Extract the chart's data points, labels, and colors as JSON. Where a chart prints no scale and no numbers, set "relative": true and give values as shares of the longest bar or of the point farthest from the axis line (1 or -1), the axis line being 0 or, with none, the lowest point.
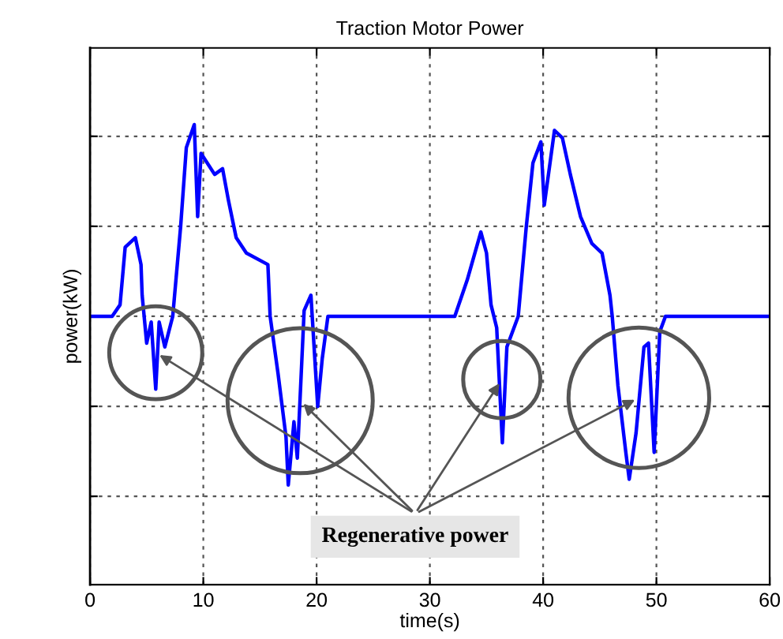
{
  "chart_data": {
    "type": "line",
    "title": "Traction Motor Power",
    "xlabel": "time(s)",
    "ylabel": "power(kW)",
    "relative": true,
    "grid": true,
    "line_style": "solid",
    "marker": "none",
    "xlim": [
      0,
      60
    ],
    "xticks": [
      0,
      10,
      20,
      30,
      40,
      50,
      60
    ],
    "annotations": [
      "Regenerative power"
    ],
    "series": [
      {
        "color": "#0000ff",
        "x": [
          0,
          1.95,
          2.65,
          3.1,
          4.0,
          4.5,
          4.6,
          5.0,
          5.4,
          5.8,
          6.1,
          6.6,
          7.3,
          8.0,
          8.5,
          9.2,
          9.5,
          9.8,
          11.0,
          11.7,
          12.2,
          12.9,
          13.8,
          15.7,
          15.9,
          16.6,
          17.3,
          17.5,
          18.0,
          18.3,
          18.9,
          19.5,
          20.1,
          20.5,
          21.0,
          32.2,
          33.3,
          34.5,
          35.0,
          35.4,
          35.9,
          36.4,
          36.8,
          37.8,
          38.5,
          39.1,
          39.8,
          40.1,
          41.0,
          41.7,
          42.4,
          43.3,
          44.3,
          45.2,
          45.9,
          46.1,
          46.6,
          47.3,
          47.6,
          48.2,
          48.9,
          49.3,
          49.8,
          50.3,
          50.8,
          60
        ],
        "values": [
          0,
          0,
          0.06,
          0.36,
          0.41,
          0.27,
          0.11,
          -0.14,
          -0.03,
          -0.38,
          -0.03,
          -0.16,
          0,
          0.47,
          0.88,
          1,
          0.52,
          0.85,
          0.74,
          0.77,
          0.61,
          0.41,
          0.33,
          0.27,
          0,
          -0.3,
          -0.63,
          -0.88,
          -0.55,
          -0.74,
          0.03,
          0.11,
          -0.47,
          -0.22,
          0,
          0,
          0.19,
          0.44,
          0.33,
          0.06,
          -0.06,
          -0.66,
          -0.16,
          0,
          0.46,
          0.8,
          0.91,
          0.58,
          0.97,
          0.93,
          0.74,
          0.52,
          0.38,
          0.33,
          0.11,
          0,
          -0.36,
          -0.71,
          -0.85,
          -0.61,
          -0.16,
          -0.14,
          -0.71,
          -0.08,
          0,
          0
        ]
      }
    ]
  }
}
